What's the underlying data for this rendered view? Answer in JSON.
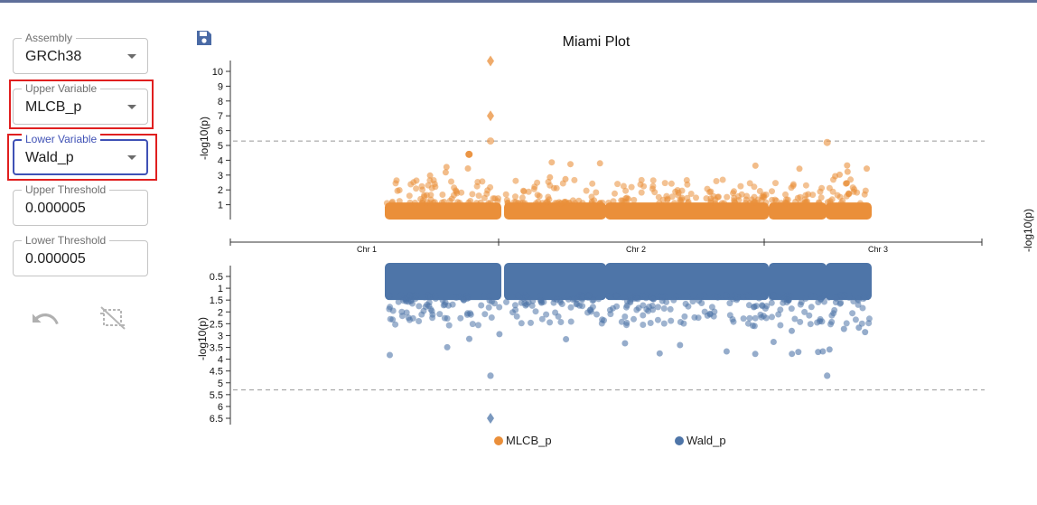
{
  "sidebar": {
    "assembly": {
      "label": "Assembly",
      "value": "GRCh38"
    },
    "upper_variable": {
      "label": "Upper Variable",
      "value": "MLCB_p"
    },
    "lower_variable": {
      "label": "Lower Variable",
      "value": "Wald_p"
    },
    "upper_threshold": {
      "label": "Upper Threshold",
      "value": "0.000005"
    },
    "lower_threshold": {
      "label": "Lower Threshold",
      "value": "0.000005"
    },
    "icons": {
      "save": "save-icon",
      "undo": "undo-icon",
      "no_crop": "crop-off-icon"
    }
  },
  "chart_data": {
    "type": "scatter",
    "title": "Miami Plot",
    "upper": {
      "ylabel": "-log10(p)",
      "yticks": [
        1,
        2,
        3,
        4,
        5,
        6,
        7,
        8,
        9,
        10
      ],
      "ylim": [
        0,
        10.6
      ],
      "threshold": 5.3,
      "series_name": "MLCB_p",
      "color": "#ea8f3a",
      "highlight_points": [
        {
          "chr": "Chr 1",
          "pos_frac": 0.92,
          "y": 10.7
        },
        {
          "chr": "Chr 1",
          "pos_frac": 0.92,
          "y": 7.0
        },
        {
          "chr": "Chr 1",
          "pos_frac": 0.92,
          "y": 5.3
        },
        {
          "chr": "Chr 1",
          "pos_frac": 0.73,
          "y": 4.4
        },
        {
          "chr": "Chr 3",
          "pos_frac": 0.57,
          "y": 5.2
        }
      ]
    },
    "lower": {
      "ylabel": "-log10(p)",
      "yticks": [
        0.5,
        1,
        1.5,
        2,
        2.5,
        3,
        3.5,
        4,
        4.5,
        5,
        5.5,
        6,
        6.5
      ],
      "ylim": [
        0,
        6.8
      ],
      "threshold": 5.3,
      "series_name": "Wald_p",
      "color": "#4e75a8",
      "highlight_points": [
        {
          "chr": "Chr 1",
          "pos_frac": 0.92,
          "y": 6.5
        },
        {
          "chr": "Chr 1",
          "pos_frac": 0.92,
          "y": 4.7
        },
        {
          "chr": "Chr 3",
          "pos_frac": 0.57,
          "y": 4.7
        }
      ]
    },
    "x_categories": [
      "Chr 1",
      "Chr 2",
      "Chr 3"
    ],
    "right_axis_label": "-log10(p)",
    "legend": [
      {
        "name": "MLCB_p",
        "color": "#ea8f3a"
      },
      {
        "name": "Wald_p",
        "color": "#4e75a8"
      }
    ]
  }
}
